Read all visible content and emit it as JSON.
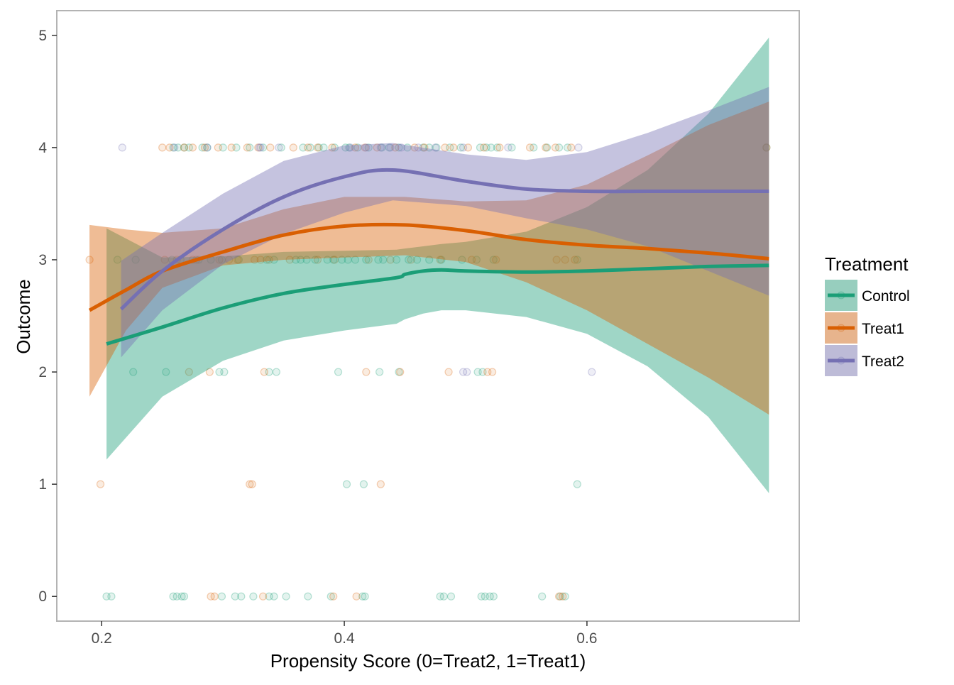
{
  "chart_data": {
    "type": "scatter",
    "subtype": "scatter with loess smooth lines and confidence ribbons",
    "xlabel": "Propensity Score (0=Treat2, 1=Treat1)",
    "ylabel": "Outcome",
    "xlim": [
      0.163,
      0.775
    ],
    "ylim": [
      -0.22,
      5.22
    ],
    "x_ticks": [
      0.2,
      0.4,
      0.6
    ],
    "x_tick_labels": [
      "0.2",
      "0.4",
      "0.6"
    ],
    "y_ticks": [
      0,
      1,
      2,
      3,
      4,
      5
    ],
    "y_tick_labels": [
      "0",
      "1",
      "2",
      "3",
      "4",
      "5"
    ],
    "grid": "minor + major (white, theme_bw style)",
    "legend": {
      "title": "Treatment",
      "position": "right",
      "entries": [
        "Control",
        "Treat1",
        "Treat2"
      ]
    },
    "series": [
      {
        "name": "Control",
        "color": "#1b9e77",
        "points": {
          "0": [
            0.204,
            0.208,
            0.259,
            0.262,
            0.266,
            0.268,
            0.299,
            0.31,
            0.315,
            0.325,
            0.338,
            0.342,
            0.352,
            0.37,
            0.389,
            0.415,
            0.417,
            0.479,
            0.482,
            0.488,
            0.513,
            0.516,
            0.52,
            0.523,
            0.563,
            0.578,
            0.582
          ],
          "1": [
            0.402,
            0.416,
            0.592
          ],
          "2": [
            0.226,
            0.253,
            0.297,
            0.301,
            0.338,
            0.344,
            0.395,
            0.429,
            0.445,
            0.51,
            0.514
          ],
          "3": [
            0.213,
            0.228,
            0.258,
            0.265,
            0.28,
            0.29,
            0.299,
            0.313,
            0.336,
            0.342,
            0.36,
            0.364,
            0.369,
            0.376,
            0.386,
            0.391,
            0.398,
            0.403,
            0.409,
            0.418,
            0.428,
            0.432,
            0.443,
            0.453,
            0.46,
            0.47,
            0.48,
            0.497,
            0.509,
            0.523,
            0.592
          ],
          "4": [
            0.259,
            0.263,
            0.268,
            0.272,
            0.283,
            0.287,
            0.3,
            0.311,
            0.322,
            0.333,
            0.348,
            0.366,
            0.372,
            0.379,
            0.383,
            0.392,
            0.401,
            0.404,
            0.411,
            0.42,
            0.431,
            0.437,
            0.445,
            0.452,
            0.465,
            0.47,
            0.476,
            0.487,
            0.496,
            0.512,
            0.517,
            0.521,
            0.526,
            0.538,
            0.556,
            0.567,
            0.577,
            0.584,
            0.748
          ]
        },
        "smooth": {
          "x": [
            0.204,
            0.25,
            0.3,
            0.35,
            0.4,
            0.443,
            0.45,
            0.465,
            0.48,
            0.5,
            0.55,
            0.6,
            0.65,
            0.7,
            0.75
          ],
          "fit": [
            2.25,
            2.4,
            2.57,
            2.7,
            2.78,
            2.84,
            2.87,
            2.9,
            2.91,
            2.9,
            2.89,
            2.9,
            2.92,
            2.94,
            2.95
          ],
          "lower": [
            1.22,
            1.78,
            2.1,
            2.28,
            2.37,
            2.43,
            2.47,
            2.52,
            2.55,
            2.55,
            2.49,
            2.34,
            2.05,
            1.6,
            0.92
          ],
          "upper": [
            3.28,
            3.02,
            3.03,
            3.07,
            3.08,
            3.09,
            3.1,
            3.12,
            3.14,
            3.16,
            3.25,
            3.47,
            3.8,
            4.3,
            4.98
          ]
        }
      },
      {
        "name": "Treat1",
        "color": "#d95f02",
        "points": {
          "0": [
            0.29,
            0.293,
            0.333,
            0.391,
            0.41,
            0.577,
            0.58
          ],
          "1": [
            0.199,
            0.322,
            0.324,
            0.43
          ],
          "2": [
            0.272,
            0.289,
            0.334,
            0.418,
            0.446,
            0.486,
            0.518,
            0.522
          ],
          "3": [
            0.19,
            0.252,
            0.262,
            0.275,
            0.278,
            0.297,
            0.305,
            0.312,
            0.326,
            0.331,
            0.338,
            0.355,
            0.378,
            0.392,
            0.42,
            0.438,
            0.455,
            0.479,
            0.505,
            0.525,
            0.575,
            0.582,
            0.59
          ],
          "4": [
            0.25,
            0.256,
            0.268,
            0.275,
            0.285,
            0.296,
            0.307,
            0.32,
            0.329,
            0.339,
            0.358,
            0.37,
            0.378,
            0.39,
            0.409,
            0.417,
            0.427,
            0.442,
            0.458,
            0.466,
            0.483,
            0.49,
            0.502,
            0.515,
            0.528,
            0.553,
            0.566,
            0.574,
            0.587,
            0.748
          ]
        },
        "smooth": {
          "x": [
            0.19,
            0.22,
            0.25,
            0.3,
            0.35,
            0.4,
            0.45,
            0.5,
            0.55,
            0.6,
            0.65,
            0.7,
            0.75
          ],
          "fit": [
            2.55,
            2.73,
            2.9,
            3.07,
            3.22,
            3.3,
            3.31,
            3.26,
            3.18,
            3.13,
            3.1,
            3.06,
            3.01
          ],
          "lower": [
            1.78,
            2.37,
            2.75,
            2.95,
            3.0,
            3.02,
            3.04,
            2.98,
            2.8,
            2.55,
            2.25,
            1.95,
            1.62
          ],
          "upper": [
            3.31,
            3.27,
            3.24,
            3.28,
            3.45,
            3.56,
            3.56,
            3.52,
            3.53,
            3.67,
            3.93,
            4.2,
            4.41
          ]
        }
      },
      {
        "name": "Treat2",
        "color": "#7570b3",
        "points": {
          "0": [],
          "1": [],
          "2": [
            0.498,
            0.501,
            0.604
          ],
          "3": [],
          "4": [
            0.217,
            0.26,
            0.287,
            0.33,
            0.331,
            0.346,
            0.405,
            0.418,
            0.43,
            0.438,
            0.447,
            0.461,
            0.475,
            0.498,
            0.535,
            0.593
          ]
        },
        "smooth": {
          "x": [
            0.216,
            0.25,
            0.3,
            0.35,
            0.4,
            0.44,
            0.5,
            0.55,
            0.6,
            0.65,
            0.7,
            0.75
          ],
          "fit": [
            2.56,
            2.9,
            3.27,
            3.56,
            3.74,
            3.8,
            3.7,
            3.63,
            3.61,
            3.61,
            3.61,
            3.61
          ],
          "lower": [
            2.13,
            2.55,
            2.96,
            3.23,
            3.42,
            3.53,
            3.48,
            3.37,
            3.27,
            3.12,
            2.9,
            2.68
          ],
          "upper": [
            2.99,
            3.24,
            3.59,
            3.88,
            4.02,
            4.04,
            3.94,
            3.89,
            3.96,
            4.13,
            4.33,
            4.54
          ]
        }
      }
    ]
  }
}
